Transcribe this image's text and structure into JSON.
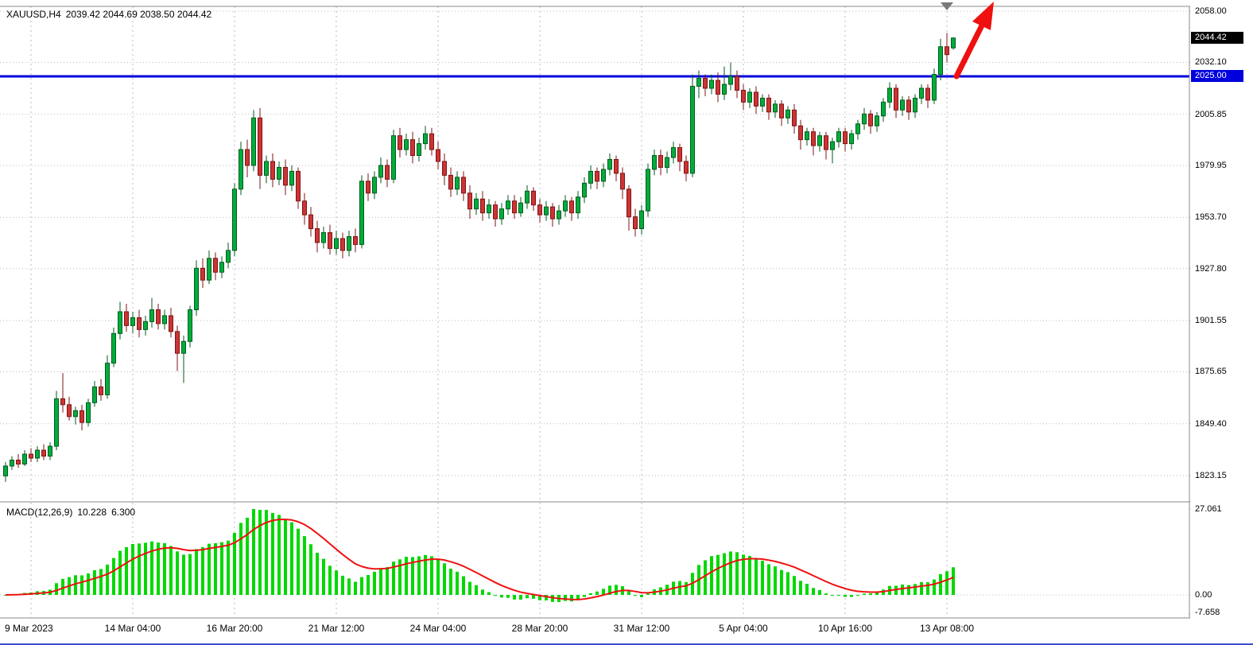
{
  "header": {
    "symbol": "XAUUSD,H4",
    "ohlc": "2039.42 2044.69 2038.50 2044.42"
  },
  "chart_data": {
    "type": "candlestick",
    "symbol": "XAUUSD",
    "timeframe": "H4",
    "title": "XAUUSD,H4 2039.42 2044.69 2038.50 2044.42",
    "current_bar": {
      "open": 2039.42,
      "high": 2044.69,
      "low": 2038.5,
      "close": 2044.42
    },
    "price_axis": {
      "gridline_labels": [
        {
          "text": "2058.00",
          "value": 2058.0
        },
        {
          "text": "2032.10",
          "value": 2032.1
        },
        {
          "text": "2005.85",
          "value": 2005.85
        },
        {
          "text": "1979.95",
          "value": 1979.95
        },
        {
          "text": "1953.70",
          "value": 1953.7
        },
        {
          "text": "1927.80",
          "value": 1927.8
        },
        {
          "text": "1901.55",
          "value": 1901.55
        },
        {
          "text": "1875.65",
          "value": 1875.65
        },
        {
          "text": "1849.40",
          "value": 1849.4
        },
        {
          "text": "1823.15",
          "value": 1823.15
        }
      ],
      "bid_badge": {
        "text": "2044.42",
        "value": 2044.42,
        "bg": "#000000",
        "fg": "#ffffff"
      },
      "level_badge": {
        "text": "2025.00",
        "value": 2025.0,
        "bg": "#0000dd",
        "fg": "#ffffff"
      }
    },
    "support_line": {
      "value": 2025.0,
      "color": "#0000dd"
    },
    "time_axis": [
      {
        "text": "9 Mar 2023",
        "bar": 4
      },
      {
        "text": "14 Mar 04:00",
        "bar": 20
      },
      {
        "text": "16 Mar 20:00",
        "bar": 36
      },
      {
        "text": "21 Mar 12:00",
        "bar": 52
      },
      {
        "text": "24 Mar 04:00",
        "bar": 68
      },
      {
        "text": "28 Mar 20:00",
        "bar": 84
      },
      {
        "text": "31 Mar 12:00",
        "bar": 100
      },
      {
        "text": "5 Apr 04:00",
        "bar": 116
      },
      {
        "text": "10 Apr 16:00",
        "bar": 132
      },
      {
        "text": "13 Apr 08:00",
        "bar": 148
      }
    ],
    "colors": {
      "up": "#00ad3c",
      "up_stroke": "#005a1e",
      "down": "#cd3434",
      "down_stroke": "#7d1414",
      "grid": "#b9b9cd",
      "frame": "#8a8a8a",
      "arrow": "#ef1010",
      "marker": "#787878"
    },
    "candles": [
      [
        1823,
        1830,
        1820,
        1828
      ],
      [
        1828,
        1833,
        1826,
        1831
      ],
      [
        1831,
        1834,
        1827,
        1829
      ],
      [
        1829,
        1836,
        1828,
        1834
      ],
      [
        1834,
        1837,
        1830,
        1832
      ],
      [
        1832,
        1838,
        1830,
        1836
      ],
      [
        1836,
        1839,
        1831,
        1833
      ],
      [
        1833,
        1840,
        1831,
        1838
      ],
      [
        1838,
        1866,
        1836,
        1862
      ],
      [
        1862,
        1875,
        1855,
        1859
      ],
      [
        1859,
        1863,
        1851,
        1853
      ],
      [
        1853,
        1858,
        1849,
        1856
      ],
      [
        1856,
        1859,
        1846,
        1850
      ],
      [
        1850,
        1862,
        1848,
        1860
      ],
      [
        1860,
        1871,
        1858,
        1868
      ],
      [
        1868,
        1872,
        1861,
        1864
      ],
      [
        1864,
        1884,
        1862,
        1880
      ],
      [
        1880,
        1898,
        1878,
        1895
      ],
      [
        1895,
        1911,
        1892,
        1906
      ],
      [
        1906,
        1910,
        1896,
        1899
      ],
      [
        1899,
        1906,
        1895,
        1903
      ],
      [
        1903,
        1907,
        1893,
        1897
      ],
      [
        1897,
        1904,
        1894,
        1901
      ],
      [
        1901,
        1913,
        1898,
        1907
      ],
      [
        1907,
        1910,
        1897,
        1900
      ],
      [
        1900,
        1907,
        1897,
        1904
      ],
      [
        1904,
        1908,
        1893,
        1896
      ],
      [
        1896,
        1899,
        1876,
        1885
      ],
      [
        1885,
        1894,
        1870,
        1891
      ],
      [
        1891,
        1909,
        1888,
        1907
      ],
      [
        1907,
        1932,
        1904,
        1928
      ],
      [
        1928,
        1933,
        1918,
        1922
      ],
      [
        1922,
        1937,
        1920,
        1933
      ],
      [
        1933,
        1936,
        1922,
        1926
      ],
      [
        1926,
        1934,
        1923,
        1931
      ],
      [
        1931,
        1941,
        1928,
        1937
      ],
      [
        1937,
        1971,
        1934,
        1968
      ],
      [
        1968,
        1992,
        1965,
        1988
      ],
      [
        1988,
        1993,
        1974,
        1980
      ],
      [
        1980,
        2008,
        1977,
        2004
      ],
      [
        2004,
        2009,
        1968,
        1975
      ],
      [
        1975,
        1985,
        1971,
        1982
      ],
      [
        1982,
        1986,
        1969,
        1973
      ],
      [
        1973,
        1982,
        1970,
        1979
      ],
      [
        1979,
        1983,
        1965,
        1970
      ],
      [
        1970,
        1980,
        1967,
        1977
      ],
      [
        1977,
        1979,
        1958,
        1962
      ],
      [
        1962,
        1966,
        1950,
        1955
      ],
      [
        1955,
        1959,
        1944,
        1948
      ],
      [
        1948,
        1952,
        1936,
        1941
      ],
      [
        1941,
        1949,
        1938,
        1946
      ],
      [
        1946,
        1950,
        1935,
        1938
      ],
      [
        1938,
        1947,
        1935,
        1943
      ],
      [
        1943,
        1946,
        1933,
        1937
      ],
      [
        1937,
        1947,
        1934,
        1944
      ],
      [
        1944,
        1948,
        1936,
        1940
      ],
      [
        1940,
        1975,
        1938,
        1972
      ],
      [
        1972,
        1976,
        1962,
        1966
      ],
      [
        1966,
        1977,
        1963,
        1974
      ],
      [
        1974,
        1984,
        1971,
        1980
      ],
      [
        1980,
        1983,
        1969,
        1973
      ],
      [
        1973,
        1998,
        1971,
        1995
      ],
      [
        1995,
        1999,
        1984,
        1988
      ],
      [
        1988,
        1996,
        1985,
        1993
      ],
      [
        1993,
        1997,
        1981,
        1985
      ],
      [
        1985,
        1994,
        1982,
        1991
      ],
      [
        1991,
        2000,
        1988,
        1996
      ],
      [
        1996,
        1999,
        1985,
        1988
      ],
      [
        1988,
        1992,
        1978,
        1982
      ],
      [
        1982,
        1986,
        1970,
        1975
      ],
      [
        1975,
        1979,
        1964,
        1968
      ],
      [
        1968,
        1977,
        1965,
        1974
      ],
      [
        1974,
        1977,
        1962,
        1966
      ],
      [
        1966,
        1970,
        1953,
        1958
      ],
      [
        1958,
        1966,
        1955,
        1963
      ],
      [
        1963,
        1967,
        1952,
        1956
      ],
      [
        1956,
        1963,
        1953,
        1960
      ],
      [
        1960,
        1962,
        1949,
        1953
      ],
      [
        1953,
        1961,
        1950,
        1958
      ],
      [
        1958,
        1965,
        1955,
        1962
      ],
      [
        1962,
        1965,
        1953,
        1956
      ],
      [
        1956,
        1964,
        1954,
        1961
      ],
      [
        1961,
        1970,
        1958,
        1967
      ],
      [
        1967,
        1969,
        1957,
        1960
      ],
      [
        1960,
        1963,
        1951,
        1955
      ],
      [
        1955,
        1962,
        1952,
        1959
      ],
      [
        1959,
        1961,
        1949,
        1953
      ],
      [
        1953,
        1960,
        1950,
        1957
      ],
      [
        1957,
        1965,
        1954,
        1962
      ],
      [
        1962,
        1964,
        1952,
        1956
      ],
      [
        1956,
        1967,
        1953,
        1964
      ],
      [
        1964,
        1974,
        1961,
        1971
      ],
      [
        1971,
        1980,
        1968,
        1977
      ],
      [
        1977,
        1979,
        1968,
        1972
      ],
      [
        1972,
        1981,
        1969,
        1978
      ],
      [
        1978,
        1986,
        1975,
        1983
      ],
      [
        1983,
        1985,
        1972,
        1976
      ],
      [
        1976,
        1979,
        1963,
        1968
      ],
      [
        1968,
        1970,
        1947,
        1954
      ],
      [
        1954,
        1958,
        1944,
        1948
      ],
      [
        1948,
        1960,
        1945,
        1957
      ],
      [
        1957,
        1981,
        1954,
        1978
      ],
      [
        1978,
        1988,
        1975,
        1985
      ],
      [
        1985,
        1988,
        1975,
        1979
      ],
      [
        1979,
        1987,
        1976,
        1984
      ],
      [
        1984,
        1992,
        1981,
        1989
      ],
      [
        1989,
        1991,
        1977,
        1982
      ],
      [
        1982,
        1985,
        1972,
        1976
      ],
      [
        1976,
        2026,
        1974,
        2020
      ],
      [
        2020,
        2028,
        2014,
        2024
      ],
      [
        2024,
        2026,
        2015,
        2019
      ],
      [
        2019,
        2026,
        2016,
        2023
      ],
      [
        2023,
        2027,
        2012,
        2016
      ],
      [
        2016,
        2030,
        2013,
        2021
      ],
      [
        2021,
        2032,
        2018,
        2025
      ],
      [
        2025,
        2028,
        2014,
        2018
      ],
      [
        2018,
        2021,
        2008,
        2012
      ],
      [
        2012,
        2019,
        2009,
        2017
      ],
      [
        2017,
        2020,
        2006,
        2010
      ],
      [
        2010,
        2016,
        2007,
        2014
      ],
      [
        2014,
        2016,
        2003,
        2007
      ],
      [
        2007,
        2013,
        2004,
        2011
      ],
      [
        2011,
        2013,
        2000,
        2004
      ],
      [
        2004,
        2010,
        2001,
        2008
      ],
      [
        2008,
        2011,
        1996,
        2000
      ],
      [
        2000,
        2003,
        1988,
        1993
      ],
      [
        1993,
        1999,
        1990,
        1997
      ],
      [
        1997,
        1999,
        1985,
        1990
      ],
      [
        1990,
        1997,
        1987,
        1995
      ],
      [
        1995,
        1997,
        1983,
        1988
      ],
      [
        1988,
        1994,
        1981,
        1992
      ],
      [
        1992,
        1999,
        1989,
        1997
      ],
      [
        1997,
        1999,
        1987,
        1991
      ],
      [
        1991,
        1998,
        1988,
        1996
      ],
      [
        1996,
        2003,
        1993,
        2001
      ],
      [
        2001,
        2009,
        1998,
        2006
      ],
      [
        2006,
        2008,
        1996,
        2000
      ],
      [
        2000,
        2007,
        1997,
        2005
      ],
      [
        2005,
        2014,
        2002,
        2012
      ],
      [
        2012,
        2022,
        2009,
        2019
      ],
      [
        2019,
        2021,
        2004,
        2008
      ],
      [
        2008,
        2015,
        2005,
        2013
      ],
      [
        2013,
        2015,
        2003,
        2007
      ],
      [
        2007,
        2016,
        2004,
        2014
      ],
      [
        2014,
        2021,
        2011,
        2019
      ],
      [
        2019,
        2021,
        2009,
        2013
      ],
      [
        2013,
        2029,
        2011,
        2026
      ],
      [
        2026,
        2044,
        2023,
        2040
      ],
      [
        2040,
        2047,
        2032,
        2036
      ],
      [
        2039.42,
        2044.69,
        2038.5,
        2044.42
      ]
    ],
    "macd": {
      "title": "MACD(12,26,9)",
      "main_value": "10.228",
      "signal_value": "6.300",
      "fast": 12,
      "slow": 26,
      "signal": 9,
      "scale": [
        {
          "text": "27.061",
          "value": 27.061
        },
        {
          "text": "0.00",
          "value": 0
        },
        {
          "text": "-7.658",
          "value": -7.658
        }
      ],
      "histogram_color": "#00d800",
      "signal_color": "#ee1111"
    }
  }
}
